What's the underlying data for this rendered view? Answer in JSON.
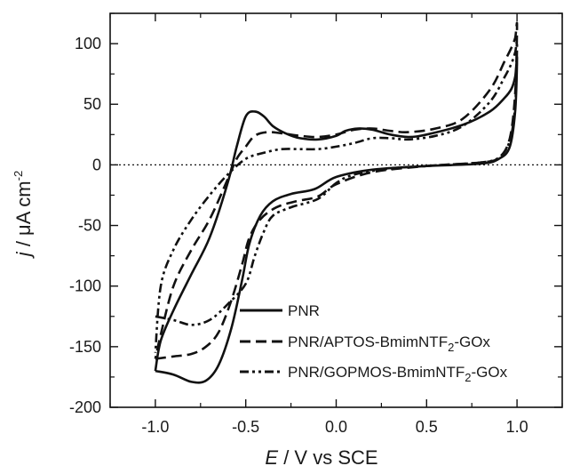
{
  "chart_data": {
    "type": "line",
    "xlabel": "E / V vs SCE",
    "ylabel": "j / μA cm-2",
    "xlim": [
      -1.25,
      1.25
    ],
    "ylim": [
      -200,
      125
    ],
    "x_ticks": [
      -1.0,
      -0.5,
      0.0,
      0.5,
      1.0
    ],
    "x_tick_labels": [
      "-1.0",
      "-0.5",
      "0.0",
      "0.5",
      "1.0"
    ],
    "y_ticks": [
      -200,
      -150,
      -100,
      -50,
      0,
      50,
      100
    ],
    "y_tick_labels": [
      "-200",
      "-150",
      "-100",
      "-50",
      "0",
      "50",
      "100"
    ],
    "zero_line": true,
    "grid": false,
    "legend_position": "bottom-right",
    "series": [
      {
        "name": "PNR",
        "dash": "solid",
        "points": [
          [
            -1.0,
            -170
          ],
          [
            -0.9,
            -173
          ],
          [
            -0.8,
            -179
          ],
          [
            -0.72,
            -178
          ],
          [
            -0.65,
            -165
          ],
          [
            -0.58,
            -135
          ],
          [
            -0.52,
            -95
          ],
          [
            -0.48,
            -65
          ],
          [
            -0.42,
            -42
          ],
          [
            -0.35,
            -30
          ],
          [
            -0.25,
            -24
          ],
          [
            -0.12,
            -20
          ],
          [
            0.0,
            -10
          ],
          [
            0.2,
            -4
          ],
          [
            0.5,
            -1
          ],
          [
            0.8,
            1
          ],
          [
            0.9,
            5
          ],
          [
            0.96,
            15
          ],
          [
            0.99,
            45
          ],
          [
            1.0,
            88
          ],
          [
            0.99,
            73
          ],
          [
            0.97,
            63
          ],
          [
            0.93,
            55
          ],
          [
            0.85,
            44
          ],
          [
            0.7,
            33
          ],
          [
            0.5,
            25
          ],
          [
            0.4,
            23
          ],
          [
            0.3,
            25
          ],
          [
            0.2,
            29
          ],
          [
            0.12,
            30
          ],
          [
            0.05,
            28
          ],
          [
            0.0,
            24
          ],
          [
            -0.1,
            21
          ],
          [
            -0.2,
            22
          ],
          [
            -0.28,
            26
          ],
          [
            -0.35,
            32
          ],
          [
            -0.4,
            40
          ],
          [
            -0.45,
            44
          ],
          [
            -0.5,
            40
          ],
          [
            -0.55,
            15
          ],
          [
            -0.6,
            -15
          ],
          [
            -0.7,
            -60
          ],
          [
            -0.8,
            -90
          ],
          [
            -0.9,
            -120
          ],
          [
            -0.97,
            -145
          ],
          [
            -1.0,
            -170
          ]
        ]
      },
      {
        "name": "PNR/APTOS-BmimNTF2-GOx",
        "dash": "dash",
        "points": [
          [
            -1.0,
            -160
          ],
          [
            -0.9,
            -158
          ],
          [
            -0.8,
            -156
          ],
          [
            -0.72,
            -150
          ],
          [
            -0.65,
            -138
          ],
          [
            -0.58,
            -112
          ],
          [
            -0.52,
            -82
          ],
          [
            -0.48,
            -60
          ],
          [
            -0.42,
            -45
          ],
          [
            -0.33,
            -35
          ],
          [
            -0.22,
            -30
          ],
          [
            -0.1,
            -26
          ],
          [
            0.0,
            -16
          ],
          [
            0.2,
            -6
          ],
          [
            0.5,
            -1
          ],
          [
            0.8,
            2
          ],
          [
            0.9,
            6
          ],
          [
            0.96,
            22
          ],
          [
            0.99,
            60
          ],
          [
            1.0,
            115
          ],
          [
            0.99,
            105
          ],
          [
            0.97,
            97
          ],
          [
            0.93,
            85
          ],
          [
            0.85,
            62
          ],
          [
            0.7,
            38
          ],
          [
            0.55,
            30
          ],
          [
            0.4,
            27
          ],
          [
            0.3,
            28
          ],
          [
            0.2,
            30
          ],
          [
            0.1,
            29
          ],
          [
            0.0,
            25
          ],
          [
            -0.1,
            23
          ],
          [
            -0.2,
            24
          ],
          [
            -0.3,
            26
          ],
          [
            -0.38,
            27
          ],
          [
            -0.45,
            24
          ],
          [
            -0.5,
            15
          ],
          [
            -0.55,
            5
          ],
          [
            -0.6,
            -12
          ],
          [
            -0.7,
            -45
          ],
          [
            -0.8,
            -70
          ],
          [
            -0.9,
            -100
          ],
          [
            -0.97,
            -140
          ],
          [
            -1.0,
            -160
          ]
        ]
      },
      {
        "name": "PNR/GOPMOS-BmimNTF2-GOx",
        "dash": "dash-dot-dot",
        "points": [
          [
            -1.0,
            -125
          ],
          [
            -0.9,
            -128
          ],
          [
            -0.8,
            -132
          ],
          [
            -0.7,
            -128
          ],
          [
            -0.6,
            -115
          ],
          [
            -0.5,
            -98
          ],
          [
            -0.45,
            -75
          ],
          [
            -0.4,
            -55
          ],
          [
            -0.35,
            -42
          ],
          [
            -0.25,
            -35
          ],
          [
            -0.1,
            -28
          ],
          [
            0.0,
            -15
          ],
          [
            0.1,
            -8
          ],
          [
            0.3,
            -3
          ],
          [
            0.6,
            0
          ],
          [
            0.8,
            2
          ],
          [
            0.9,
            6
          ],
          [
            0.96,
            20
          ],
          [
            0.99,
            50
          ],
          [
            1.0,
            100
          ],
          [
            0.99,
            93
          ],
          [
            0.97,
            84
          ],
          [
            0.93,
            72
          ],
          [
            0.85,
            52
          ],
          [
            0.7,
            32
          ],
          [
            0.55,
            24
          ],
          [
            0.4,
            21
          ],
          [
            0.3,
            22
          ],
          [
            0.2,
            22
          ],
          [
            0.1,
            18
          ],
          [
            0.0,
            15
          ],
          [
            -0.1,
            13
          ],
          [
            -0.2,
            13
          ],
          [
            -0.3,
            13
          ],
          [
            -0.4,
            10
          ],
          [
            -0.5,
            5
          ],
          [
            -0.6,
            -8
          ],
          [
            -0.7,
            -25
          ],
          [
            -0.8,
            -45
          ],
          [
            -0.9,
            -70
          ],
          [
            -0.97,
            -100
          ],
          [
            -1.0,
            -155
          ]
        ]
      }
    ]
  },
  "labels": {
    "x_italic": "E",
    "x_rest": " / V vs SCE",
    "y_italic": "j",
    "y_rest": " / μA cm",
    "y_sup": "-2",
    "legend": [
      {
        "main": "PNR",
        "sub": "",
        "tail": ""
      },
      {
        "main": "PNR/APTOS-BmimNTF",
        "sub": "2",
        "tail": "-GOx"
      },
      {
        "main": "PNR/GOPMOS-BmimNTF",
        "sub": "2",
        "tail": "-GOx"
      }
    ]
  }
}
